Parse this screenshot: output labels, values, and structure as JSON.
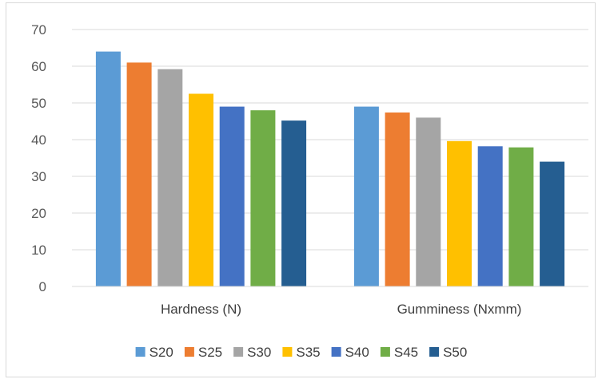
{
  "chart_data": {
    "type": "bar",
    "title": "",
    "xlabel": "",
    "ylabel": "",
    "categories": [
      "Hardness (N)",
      "Gumminess (Nxmm)"
    ],
    "ylim": [
      0,
      70
    ],
    "yticks": [
      0,
      10,
      20,
      30,
      40,
      50,
      60,
      70
    ],
    "grid": true,
    "legend": "bottom",
    "series": [
      {
        "name": "S20",
        "color": "#5b9bd5",
        "values": [
          64,
          49
        ]
      },
      {
        "name": "S25",
        "color": "#ed7d31",
        "values": [
          61,
          47.4
        ]
      },
      {
        "name": "S30",
        "color": "#a5a5a5",
        "values": [
          59.2,
          46
        ]
      },
      {
        "name": "S35",
        "color": "#ffc000",
        "values": [
          52.5,
          39.6
        ]
      },
      {
        "name": "S40",
        "color": "#4472c4",
        "values": [
          49,
          38.2
        ]
      },
      {
        "name": "S45",
        "color": "#70ad47",
        "values": [
          48,
          37.9
        ]
      },
      {
        "name": "S50",
        "color": "#255e91",
        "values": [
          45.2,
          34
        ]
      }
    ]
  }
}
